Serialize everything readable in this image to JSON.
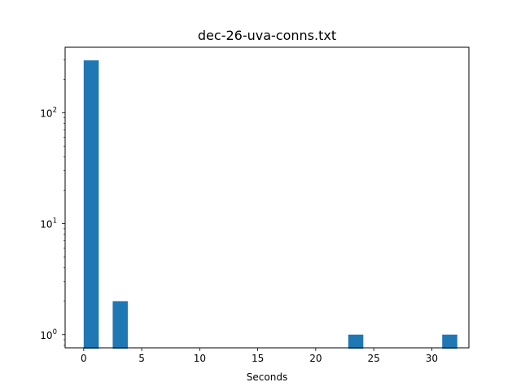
{
  "chart_data": {
    "type": "bar",
    "title": "dec-26-uva-conns.txt",
    "xlabel": "Seconds",
    "ylabel": "",
    "yscale": "log",
    "xlim": [
      -1.6,
      33.2
    ],
    "ylim": [
      0.76,
      390
    ],
    "x_ticks": [
      {
        "value": 0,
        "label": "0"
      },
      {
        "value": 5,
        "label": "5"
      },
      {
        "value": 10,
        "label": "10"
      },
      {
        "value": 15,
        "label": "15"
      },
      {
        "value": 20,
        "label": "20"
      },
      {
        "value": 25,
        "label": "25"
      },
      {
        "value": 30,
        "label": "30"
      }
    ],
    "y_ticks": [
      {
        "value": 1,
        "base": "10",
        "exp": "0"
      },
      {
        "value": 10,
        "base": "10",
        "exp": "1"
      },
      {
        "value": 100,
        "base": "10",
        "exp": "2"
      }
    ],
    "grid": false,
    "bar_color": "#1f77b4",
    "bins": [
      {
        "x0": 0.0,
        "x1": 1.3,
        "count": 297
      },
      {
        "x0": 2.5,
        "x1": 3.8,
        "count": 2
      },
      {
        "x0": 22.8,
        "x1": 24.1,
        "count": 1
      },
      {
        "x0": 30.9,
        "x1": 32.2,
        "count": 1
      }
    ]
  }
}
